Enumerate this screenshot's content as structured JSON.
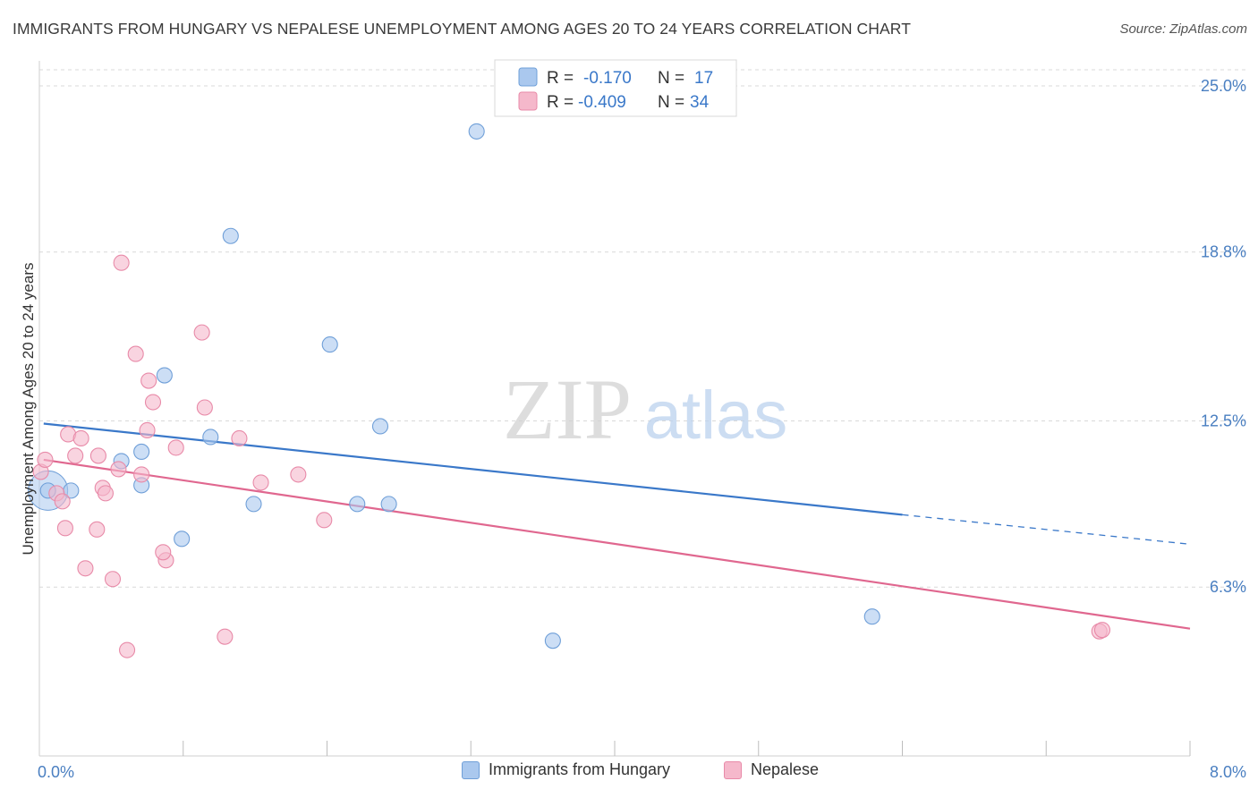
{
  "header": {
    "title": "IMMIGRANTS FROM HUNGARY VS NEPALESE UNEMPLOYMENT AMONG AGES 20 TO 24 YEARS CORRELATION CHART",
    "source": "Source: ZipAtlas.com"
  },
  "watermark": {
    "zip": "ZIP",
    "atlas": "atlas"
  },
  "colors": {
    "blue_fill": "#aac8ee",
    "blue_stroke": "#6f9fd8",
    "blue_line": "#3a78c9",
    "pink_fill": "#f5b8cb",
    "pink_stroke": "#e88aa8",
    "pink_line": "#e0678f",
    "axis_text": "#4a7fc1",
    "grid": "#d9d9d9"
  },
  "legend_top": [
    {
      "r_label": "R =",
      "r_value": "-0.170",
      "n_label": "N =",
      "n_value": "17"
    },
    {
      "r_label": "R =",
      "r_value": "-0.409",
      "n_label": "N =",
      "n_value": "34"
    }
  ],
  "legend_bottom": [
    "Immigrants from Hungary",
    "Nepalese"
  ],
  "chart_data": {
    "type": "scatter",
    "title": "IMMIGRANTS FROM HUNGARY VS NEPALESE UNEMPLOYMENT AMONG AGES 20 TO 24 YEARS CORRELATION CHART",
    "xlabel": "",
    "ylabel": "Unemployment Among Ages 20 to 24 years",
    "xlim": [
      0,
      8.0
    ],
    "ylim": [
      0,
      25.6
    ],
    "x_tick_labels": [
      "0.0%",
      "8.0%"
    ],
    "y_ticks": [
      6.3,
      12.5,
      18.8,
      25.0
    ],
    "y_tick_labels": [
      "6.3%",
      "12.5%",
      "18.8%",
      "25.0%"
    ],
    "grid": true,
    "series": [
      {
        "name": "Immigrants from Hungary",
        "color": "blue",
        "points": [
          [
            0.06,
            9.9
          ],
          [
            0.22,
            9.9
          ],
          [
            0.57,
            11.0
          ],
          [
            0.71,
            11.35
          ],
          [
            0.71,
            10.1
          ],
          [
            0.87,
            14.2
          ],
          [
            0.99,
            8.1
          ],
          [
            1.19,
            11.9
          ],
          [
            1.33,
            19.4
          ],
          [
            1.49,
            9.4
          ],
          [
            2.02,
            15.35
          ],
          [
            2.21,
            9.4
          ],
          [
            2.37,
            12.3
          ],
          [
            2.43,
            9.4
          ],
          [
            3.04,
            23.3
          ],
          [
            3.57,
            4.3
          ],
          [
            5.79,
            5.2
          ]
        ],
        "trend": {
          "x_start": 0.03,
          "y_start": 12.4,
          "x_solid_end": 6.0,
          "y_solid_end": 9.0,
          "x_end": 8.0,
          "y_end": 7.9
        }
      },
      {
        "name": "Nepalese",
        "color": "pink",
        "points": [
          [
            0.01,
            10.6
          ],
          [
            0.04,
            11.05
          ],
          [
            0.12,
            9.8
          ],
          [
            0.16,
            9.5
          ],
          [
            0.18,
            8.5
          ],
          [
            0.2,
            12.0
          ],
          [
            0.25,
            11.2
          ],
          [
            0.29,
            11.85
          ],
          [
            0.32,
            7.0
          ],
          [
            0.41,
            11.2
          ],
          [
            0.4,
            8.45
          ],
          [
            0.44,
            10.0
          ],
          [
            0.46,
            9.8
          ],
          [
            0.51,
            6.6
          ],
          [
            0.55,
            10.7
          ],
          [
            0.57,
            18.4
          ],
          [
            0.61,
            3.95
          ],
          [
            0.67,
            15.0
          ],
          [
            0.71,
            10.5
          ],
          [
            0.75,
            12.15
          ],
          [
            0.76,
            14.0
          ],
          [
            0.79,
            13.2
          ],
          [
            0.88,
            7.3
          ],
          [
            0.86,
            7.6
          ],
          [
            0.95,
            11.5
          ],
          [
            1.13,
            15.8
          ],
          [
            1.15,
            13.0
          ],
          [
            1.29,
            4.45
          ],
          [
            1.39,
            11.85
          ],
          [
            1.54,
            10.2
          ],
          [
            1.8,
            10.5
          ],
          [
            1.98,
            8.8
          ],
          [
            7.37,
            4.65
          ],
          [
            7.39,
            4.7
          ]
        ],
        "trend": {
          "x_start": 0.03,
          "y_start": 11.05,
          "x_end": 8.0,
          "y_end": 4.75
        }
      }
    ]
  }
}
